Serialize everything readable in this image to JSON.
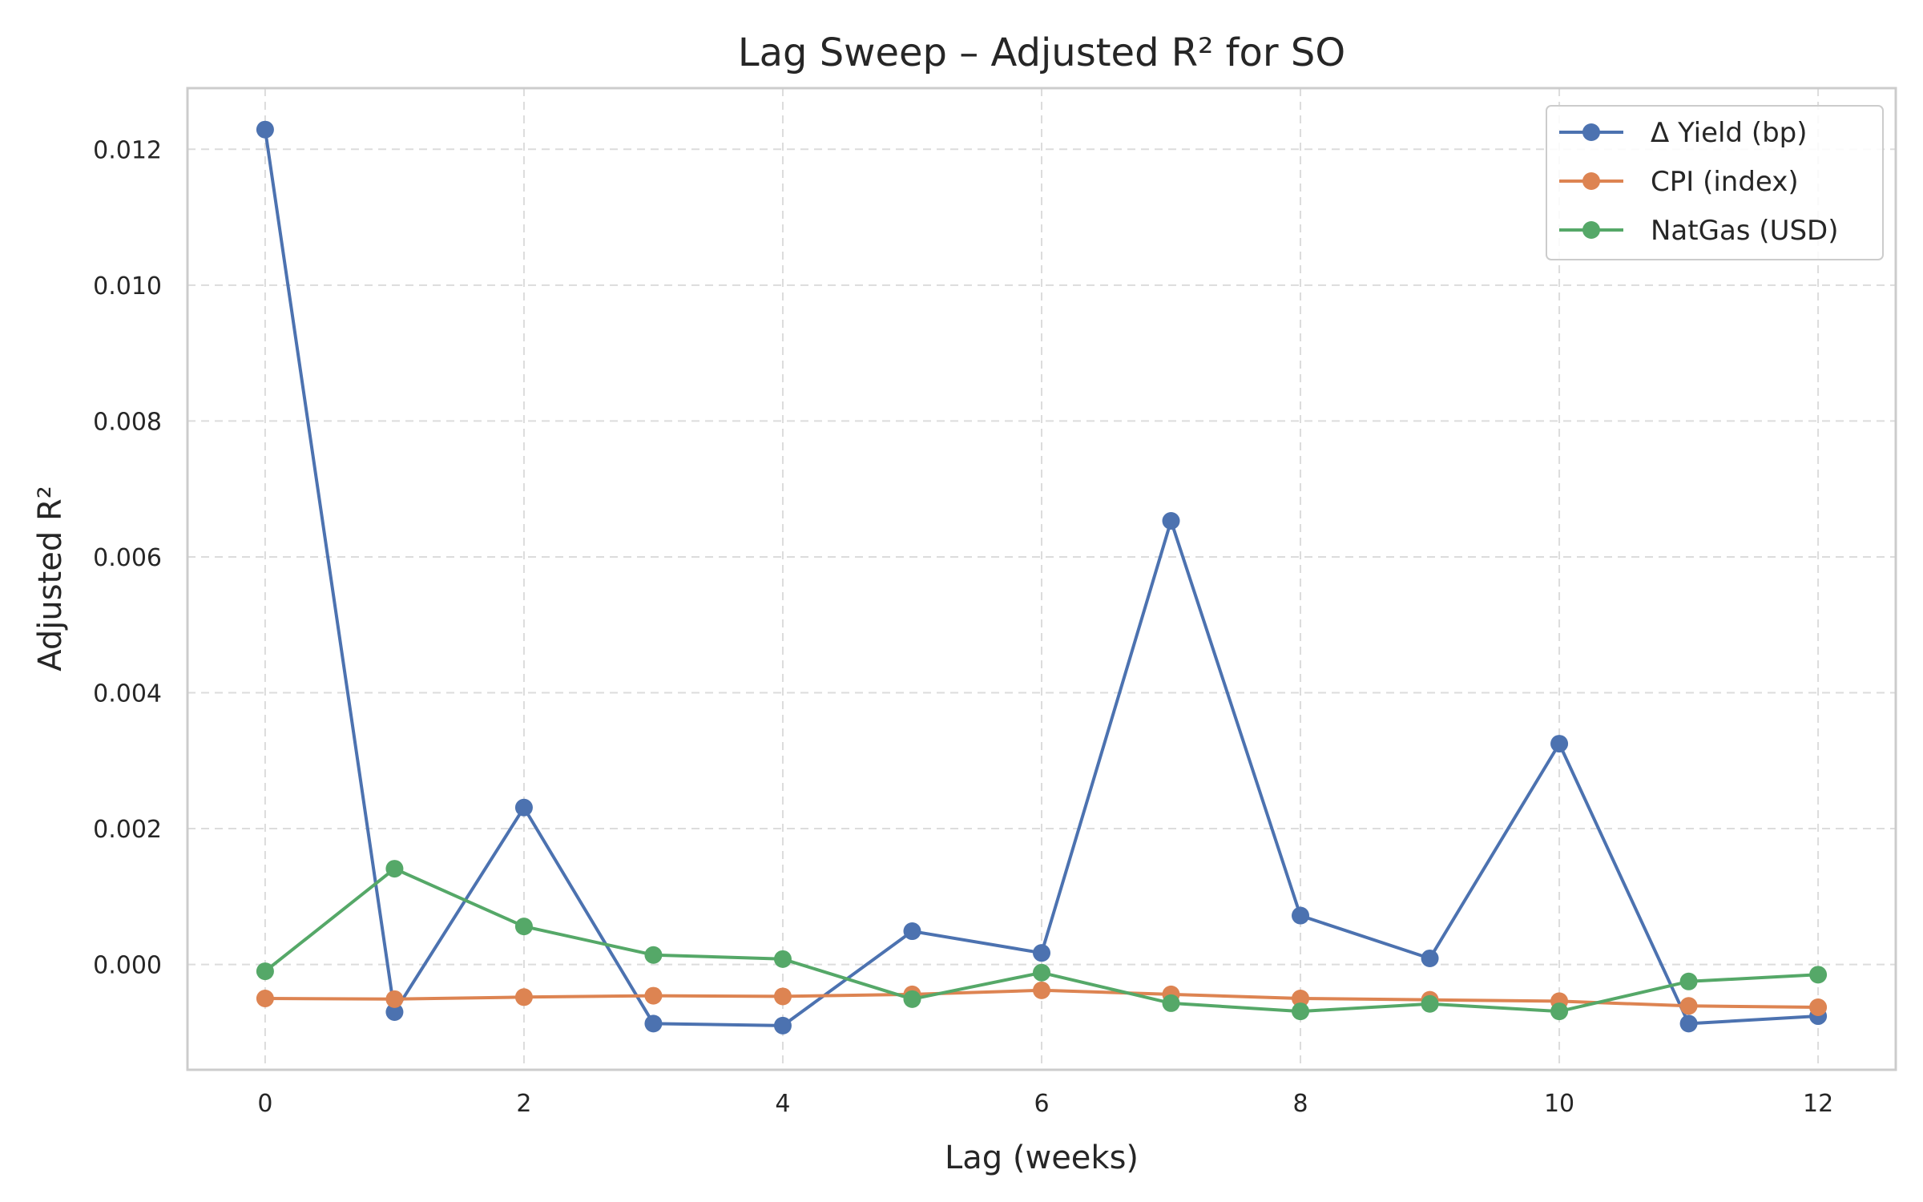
{
  "chart_data": {
    "type": "line",
    "title": "Lag Sweep – Adjusted R² for SO",
    "xlabel": "Lag (weeks)",
    "ylabel": "Adjusted R²",
    "x": [
      0,
      1,
      2,
      3,
      4,
      5,
      6,
      7,
      8,
      9,
      10,
      11,
      12
    ],
    "xlim": [
      -0.6,
      12.6
    ],
    "ylim": [
      -0.00155,
      0.0129
    ],
    "xticks": [
      0,
      2,
      4,
      6,
      8,
      10,
      12
    ],
    "xtick_labels": [
      "0",
      "2",
      "4",
      "6",
      "8",
      "10",
      "12"
    ],
    "yticks": [
      0,
      0.002,
      0.004,
      0.006,
      0.008,
      0.01,
      0.012
    ],
    "ytick_labels": [
      "0.000",
      "0.002",
      "0.004",
      "0.006",
      "0.008",
      "0.010",
      "0.012"
    ],
    "grid": true,
    "legend_position": "top-right",
    "series": [
      {
        "name": "Δ Yield (bp)",
        "color": "#4c72b0",
        "marker": "circle",
        "values": [
          0.01229,
          -0.0007,
          0.00231,
          -0.00087,
          -0.0009,
          0.00049,
          0.00017,
          0.00653,
          0.00072,
          9e-05,
          0.00325,
          -0.00087,
          -0.00076
        ]
      },
      {
        "name": "CPI (index)",
        "color": "#dd8452",
        "marker": "circle",
        "values": [
          -0.0005,
          -0.00051,
          -0.00048,
          -0.00046,
          -0.00047,
          -0.00044,
          -0.00038,
          -0.00044,
          -0.0005,
          -0.00052,
          -0.00054,
          -0.00061,
          -0.00063
        ]
      },
      {
        "name": "NatGas (USD)",
        "color": "#55a868",
        "marker": "circle",
        "values": [
          -0.0001,
          0.00141,
          0.00056,
          0.00014,
          8e-05,
          -0.00051,
          -0.00012,
          -0.00057,
          -0.00069,
          -0.00058,
          -0.00069,
          -0.00025,
          -0.00015
        ]
      }
    ]
  }
}
